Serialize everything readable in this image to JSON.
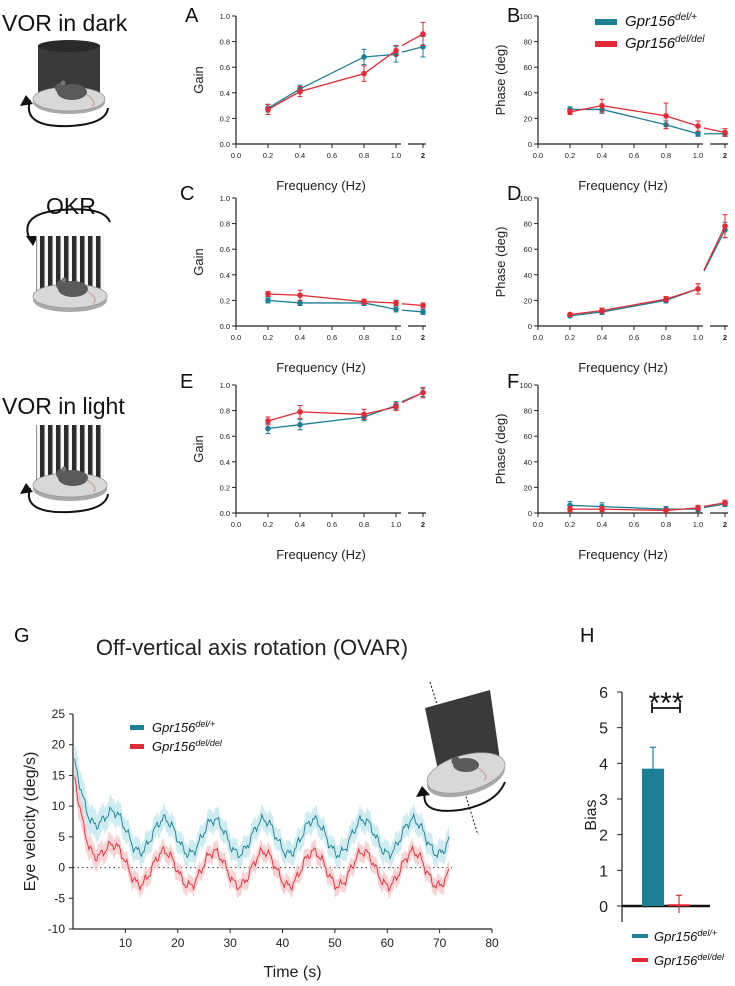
{
  "row_labels": {
    "vor_dark": "VOR in dark",
    "okr": "OKR",
    "vor_light": "VOR in light"
  },
  "colors": {
    "het": "#1b7f95",
    "del": "#e32a36",
    "het_band": "#bfe6ee",
    "del_band": "#f7c5c8"
  },
  "legend": {
    "het_base": "Gpr156",
    "het_sup": "del/+",
    "del_base": "Gpr156",
    "del_sup": "del/del"
  },
  "chart_data": [
    {
      "panel": "A",
      "type": "line",
      "xlabel": "Frequency (Hz)",
      "ylabel": "Gain",
      "x_ticks": [
        "0.0",
        "0.2",
        "0.4",
        "0.6",
        "0.8",
        "1.0",
        "2"
      ],
      "y_ticks": [
        "0.0",
        "0.2",
        "0.4",
        "0.6",
        "0.8",
        "1.0"
      ],
      "ylim": [
        0,
        1.0
      ],
      "x": [
        0.2,
        0.4,
        0.8,
        1.0,
        2
      ],
      "series": [
        {
          "name": "Gpr156 del/+",
          "values": [
            0.28,
            0.43,
            0.68,
            0.7,
            0.76
          ],
          "err": [
            0.03,
            0.03,
            0.06,
            0.06,
            0.08
          ]
        },
        {
          "name": "Gpr156 del/del",
          "values": [
            0.27,
            0.41,
            0.55,
            0.73,
            0.86
          ],
          "err": [
            0.04,
            0.04,
            0.06,
            0.04,
            0.09
          ]
        }
      ]
    },
    {
      "panel": "B",
      "type": "line",
      "xlabel": "Frequency (Hz)",
      "ylabel": "Phase (deg)",
      "x_ticks": [
        "0.0",
        "0.2",
        "0.4",
        "0.6",
        "0.8",
        "1.0",
        "2"
      ],
      "y_ticks": [
        "0",
        "20",
        "40",
        "60",
        "80",
        "100"
      ],
      "ylim": [
        0,
        100
      ],
      "x": [
        0.2,
        0.4,
        0.8,
        1.0,
        2
      ],
      "series": [
        {
          "name": "Gpr156 del/+",
          "values": [
            27,
            27,
            15,
            8,
            8
          ],
          "err": [
            2,
            3,
            3,
            2,
            2
          ]
        },
        {
          "name": "Gpr156 del/del",
          "values": [
            25,
            30,
            22,
            14,
            9
          ],
          "err": [
            2,
            5,
            10,
            4,
            3
          ]
        }
      ]
    },
    {
      "panel": "C",
      "type": "line",
      "xlabel": "Frequency (Hz)",
      "ylabel": "Gain",
      "x_ticks": [
        "0.0",
        "0.2",
        "0.4",
        "0.6",
        "0.8",
        "1.0",
        "2"
      ],
      "y_ticks": [
        "0.0",
        "0.2",
        "0.4",
        "0.6",
        "0.8",
        "1.0"
      ],
      "ylim": [
        0,
        1.0
      ],
      "x": [
        0.2,
        0.4,
        0.8,
        1.0,
        2
      ],
      "series": [
        {
          "name": "Gpr156 del/+",
          "values": [
            0.2,
            0.18,
            0.18,
            0.13,
            0.11
          ],
          "err": [
            0.02,
            0.02,
            0.02,
            0.02,
            0.02
          ]
        },
        {
          "name": "Gpr156 del/del",
          "values": [
            0.25,
            0.24,
            0.19,
            0.18,
            0.16
          ],
          "err": [
            0.02,
            0.04,
            0.02,
            0.02,
            0.02
          ]
        }
      ]
    },
    {
      "panel": "D",
      "type": "line",
      "xlabel": "Frequency (Hz)",
      "ylabel": "Phase (deg)",
      "x_ticks": [
        "0.0",
        "0.2",
        "0.4",
        "0.6",
        "0.8",
        "1.0",
        "2"
      ],
      "y_ticks": [
        "0",
        "20",
        "40",
        "60",
        "80",
        "100"
      ],
      "ylim": [
        0,
        100
      ],
      "x": [
        0.2,
        0.4,
        0.8,
        1.0,
        2
      ],
      "series": [
        {
          "name": "Gpr156 del/+",
          "values": [
            8,
            11,
            20,
            29,
            75
          ],
          "err": [
            1,
            2,
            2,
            4,
            6
          ]
        },
        {
          "name": "Gpr156 del/del",
          "values": [
            9,
            12,
            21,
            29,
            78
          ],
          "err": [
            1,
            2,
            2,
            4,
            9
          ]
        }
      ]
    },
    {
      "panel": "E",
      "type": "line",
      "xlabel": "Frequency (Hz)",
      "ylabel": "Gain",
      "x_ticks": [
        "0.0",
        "0.2",
        "0.4",
        "0.6",
        "0.8",
        "1.0",
        "2"
      ],
      "y_ticks": [
        "0.0",
        "0.2",
        "0.4",
        "0.6",
        "0.8",
        "1.0"
      ],
      "ylim": [
        0,
        1.0
      ],
      "x": [
        0.2,
        0.4,
        0.8,
        1.0,
        2
      ],
      "series": [
        {
          "name": "Gpr156 del/+",
          "values": [
            0.66,
            0.69,
            0.75,
            0.84,
            0.94
          ],
          "err": [
            0.04,
            0.04,
            0.03,
            0.03,
            0.03
          ]
        },
        {
          "name": "Gpr156 del/del",
          "values": [
            0.72,
            0.79,
            0.77,
            0.83,
            0.94
          ],
          "err": [
            0.03,
            0.05,
            0.04,
            0.03,
            0.04
          ]
        }
      ]
    },
    {
      "panel": "F",
      "type": "line",
      "xlabel": "Frequency (Hz)",
      "ylabel": "Phase (deg)",
      "x_ticks": [
        "0.0",
        "0.2",
        "0.4",
        "0.6",
        "0.8",
        "1.0",
        "2"
      ],
      "y_ticks": [
        "0",
        "20",
        "40",
        "60",
        "80",
        "100"
      ],
      "ylim": [
        0,
        100
      ],
      "x": [
        0.2,
        0.4,
        0.8,
        1.0,
        2
      ],
      "series": [
        {
          "name": "Gpr156 del/+",
          "values": [
            6,
            5,
            3,
            3,
            7
          ],
          "err": [
            3,
            3,
            2,
            2,
            2
          ]
        },
        {
          "name": "Gpr156 del/del",
          "values": [
            3,
            3,
            2,
            4,
            8
          ],
          "err": [
            2,
            2,
            1,
            2,
            2
          ]
        }
      ]
    },
    {
      "panel": "G",
      "type": "line",
      "title": "Off-vertical axis rotation (OVAR)",
      "xlabel": "Time (s)",
      "ylabel": "Eye velocity (deg/s)",
      "x_ticks": [
        "10",
        "20",
        "30",
        "40",
        "50",
        "60",
        "70",
        "80"
      ],
      "y_ticks": [
        "-10",
        "-5",
        "0",
        "5",
        "10",
        "15",
        "20",
        "25"
      ],
      "xlim": [
        0,
        80
      ],
      "ylim": [
        -10,
        25
      ],
      "series": [
        {
          "name": "Gpr156 del/+",
          "start": 18,
          "end": 5.0,
          "tau": 3.5,
          "amplitude": 2.8,
          "period": 9.5,
          "phase": 2.6,
          "sd": 1.8,
          "t_end": 72
        },
        {
          "name": "Gpr156 del/del",
          "start": 16,
          "end": -0.2,
          "tau": 3.0,
          "amplitude": 2.8,
          "period": 9.5,
          "phase": 2.6,
          "sd": 1.4,
          "t_end": 72
        }
      ]
    },
    {
      "panel": "H",
      "type": "bar",
      "ylabel": "Bias",
      "y_ticks": [
        "0",
        "1",
        "2",
        "3",
        "4",
        "5",
        "6"
      ],
      "ylim": [
        0,
        6
      ],
      "categories": [
        "Gpr156 del/+",
        "Gpr156 del/del"
      ],
      "values": [
        3.85,
        0.05
      ],
      "err": [
        0.6,
        0.25
      ],
      "significance": "***"
    }
  ]
}
